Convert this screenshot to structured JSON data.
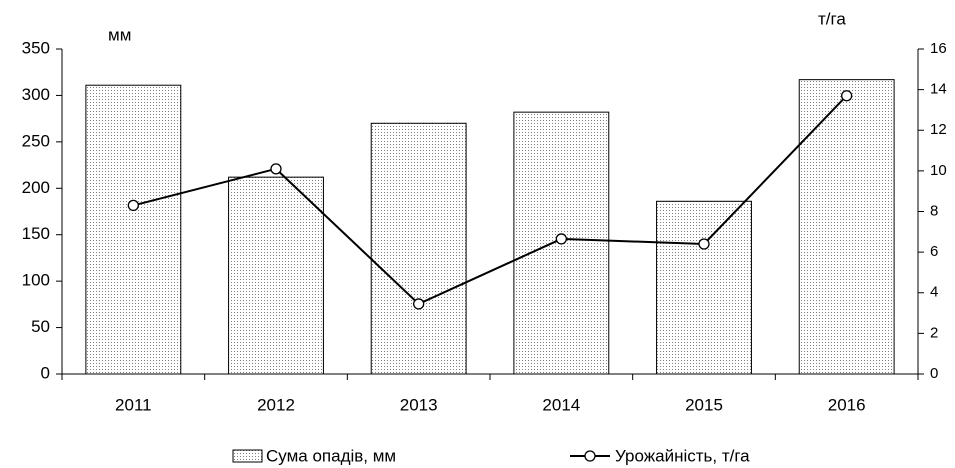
{
  "chart_data": {
    "type": "bar",
    "y_label": "мм",
    "y2_label": "т/га",
    "categories": [
      "2011",
      "2012",
      "2013",
      "2014",
      "2015",
      "2016"
    ],
    "series": [
      {
        "name": "Сума опадів, мм",
        "type": "bar",
        "color": "#808080",
        "values": [
          311,
          212,
          270,
          282,
          186,
          317
        ]
      },
      {
        "name": "Урожайність, т/га",
        "type": "line",
        "axis": "y2",
        "color": "#000000",
        "values": [
          8.3,
          10.1,
          3.45,
          6.65,
          6.4,
          13.7
        ]
      }
    ],
    "ylim": [
      0,
      350
    ],
    "yticks": [
      0,
      50,
      100,
      150,
      200,
      250,
      300,
      350
    ],
    "y2lim": [
      0,
      16
    ],
    "y2ticks": [
      0,
      2,
      4,
      6,
      8,
      10,
      12,
      14,
      16
    ],
    "grid": false,
    "legend": "bottom"
  }
}
